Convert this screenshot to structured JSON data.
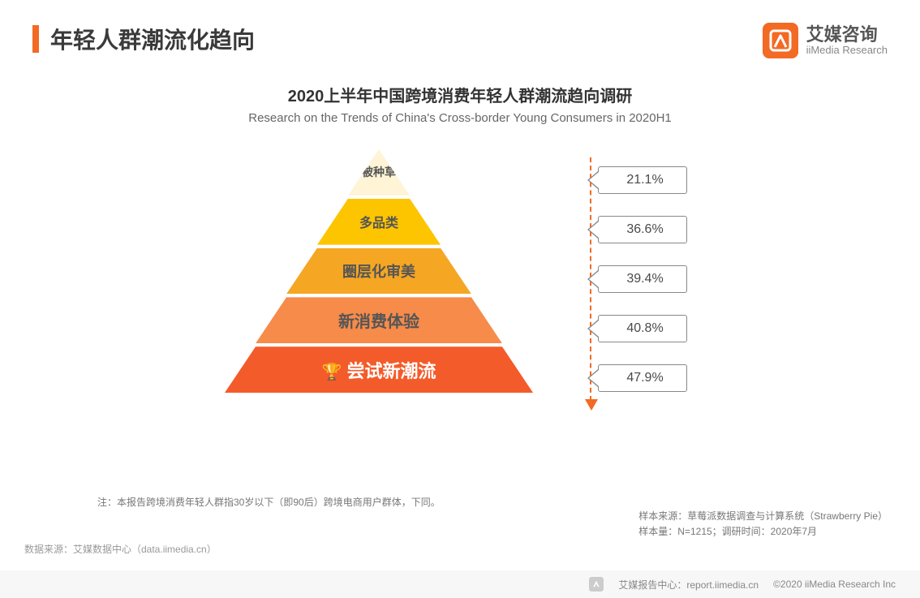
{
  "header": {
    "title": "年轻人群潮流化趋向",
    "accent_color": "#f36a24",
    "logo": {
      "name_cn": "艾媒咨询",
      "name_en": "iiMedia Research",
      "icon_bg": "#f36a24"
    }
  },
  "chart": {
    "type": "pyramid",
    "title_cn": "2020上半年中国跨境消费年轻人群潮流趋向调研",
    "title_en": "Research on the Trends of China's Cross-border Young Consumers in 2020H1",
    "layers": [
      {
        "label": "被种草",
        "value": "21.1%",
        "color": "#fff4d6",
        "text_color": "#555",
        "font_size": 14
      },
      {
        "label": "多品类",
        "value": "36.6%",
        "color": "#fdc400",
        "text_color": "#555",
        "font_size": 16
      },
      {
        "label": "圈层化审美",
        "value": "39.4%",
        "color": "#f5a623",
        "text_color": "#555",
        "font_size": 18
      },
      {
        "label": "新消费体验",
        "value": "40.8%",
        "color": "#f68b4a",
        "text_color": "#555",
        "font_size": 20
      },
      {
        "label": "尝试新潮流",
        "value": "47.9%",
        "color": "#f45b2a",
        "text_color": "#ffffff",
        "font_size": 22,
        "has_trophy": true
      }
    ],
    "arrow_color": "#f36a24",
    "label_border_color": "#888888",
    "background_color": "#ffffff"
  },
  "notes": {
    "definition": "注：本报告跨境消费年轻人群指30岁以下（即90后）跨境电商用户群体，下同。",
    "data_source_left": "数据来源：艾媒数据中心（data.iimedia.cn）",
    "sample_source": "样本来源：草莓派数据调查与计算系统（Strawberry Pie）",
    "sample_size": "样本量：N=1215；调研时间：2020年7月"
  },
  "footer": {
    "report_center": "艾媒报告中心：report.iimedia.cn",
    "copyright": "©2020  iiMedia Research  Inc"
  }
}
